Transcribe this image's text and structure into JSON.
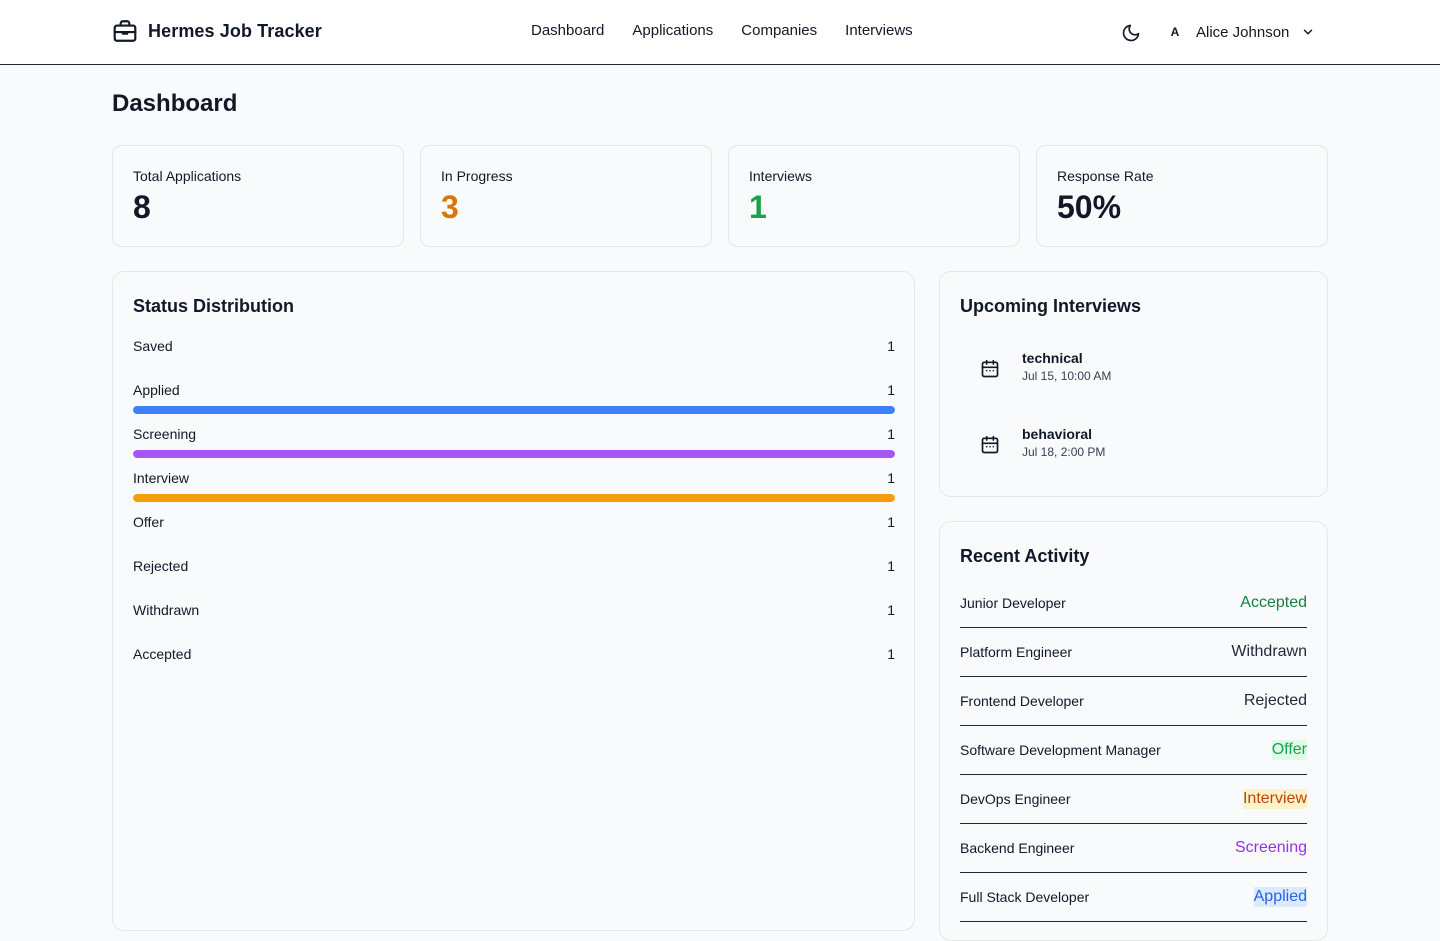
{
  "header": {
    "brand": "Hermes Job Tracker",
    "nav": [
      "Dashboard",
      "Applications",
      "Companies",
      "Interviews"
    ],
    "user_initial": "A",
    "user_name": "Alice Johnson"
  },
  "page": {
    "title": "Dashboard"
  },
  "stats": [
    {
      "label": "Total Applications",
      "value": "8",
      "color": "#111827"
    },
    {
      "label": "In Progress",
      "value": "3",
      "color": "#d97706"
    },
    {
      "label": "Interviews",
      "value": "1",
      "color": "#16a34a"
    },
    {
      "label": "Response Rate",
      "value": "50%",
      "color": "#111827"
    }
  ],
  "status_distribution": {
    "title": "Status Distribution",
    "items": [
      {
        "label": "Saved",
        "count": "1",
        "bar_color": null,
        "fill": 1.0
      },
      {
        "label": "Applied",
        "count": "1",
        "bar_color": "#3b82f6",
        "fill": 1.0
      },
      {
        "label": "Screening",
        "count": "1",
        "bar_color": "#a855f7",
        "fill": 1.0
      },
      {
        "label": "Interview",
        "count": "1",
        "bar_color": "#f59e0b",
        "fill": 1.0
      },
      {
        "label": "Offer",
        "count": "1",
        "bar_color": null,
        "fill": 1.0
      },
      {
        "label": "Rejected",
        "count": "1",
        "bar_color": null,
        "fill": 1.0
      },
      {
        "label": "Withdrawn",
        "count": "1",
        "bar_color": null,
        "fill": 1.0
      },
      {
        "label": "Accepted",
        "count": "1",
        "bar_color": null,
        "fill": 1.0
      }
    ]
  },
  "upcoming_interviews": {
    "title": "Upcoming Interviews",
    "items": [
      {
        "type": "technical",
        "time": "Jul 15, 10:00 AM"
      },
      {
        "type": "behavioral",
        "time": "Jul 18, 2:00 PM"
      }
    ]
  },
  "recent_activity": {
    "title": "Recent Activity",
    "items": [
      {
        "title": "Junior Developer",
        "status": "Accepted",
        "color": "#15803d",
        "bg": "transparent"
      },
      {
        "title": "Platform Engineer",
        "status": "Withdrawn",
        "color": "#1f2937",
        "bg": "transparent"
      },
      {
        "title": "Frontend Developer",
        "status": "Rejected",
        "color": "#1f2937",
        "bg": "transparent"
      },
      {
        "title": "Software Development Manager",
        "status": "Offer",
        "color": "#16a34a",
        "bg": "#dcfce7"
      },
      {
        "title": "DevOps Engineer",
        "status": "Interview",
        "color": "#c2410c",
        "bg": "#fef3c7"
      },
      {
        "title": "Backend Engineer",
        "status": "Screening",
        "color": "#9333ea",
        "bg": "transparent"
      },
      {
        "title": "Full Stack Developer",
        "status": "Applied",
        "color": "#2563eb",
        "bg": "#dbeafe"
      }
    ]
  }
}
